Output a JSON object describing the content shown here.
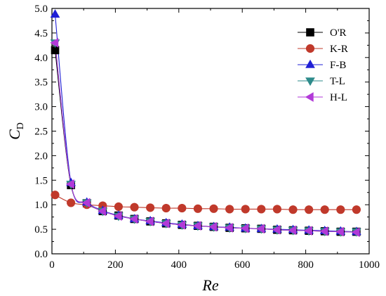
{
  "chart_data": {
    "type": "line",
    "title": "",
    "xlabel": "Re",
    "ylabel_main": "C",
    "ylabel_sub": "D",
    "xlim": [
      0,
      1000
    ],
    "ylim": [
      0,
      5.0
    ],
    "xticks": [
      0,
      200,
      400,
      600,
      800,
      1000
    ],
    "yticks": [
      0.0,
      0.5,
      1.0,
      1.5,
      2.0,
      2.5,
      3.0,
      3.5,
      4.0,
      4.5,
      5.0
    ],
    "ytick_labels": [
      "0.0",
      "0.5",
      "1.0",
      "1.5",
      "2.0",
      "2.5",
      "3.0",
      "3.5",
      "4.0",
      "4.5",
      "5.0"
    ],
    "xtick_labels": [
      "0",
      "200",
      "400",
      "600",
      "800",
      "1000"
    ],
    "grid": false,
    "legend_position": "top-right",
    "series": [
      {
        "name": "O'R",
        "marker": "square",
        "color": "#000000",
        "x": [
          10,
          60,
          110,
          160,
          210,
          260,
          310,
          360,
          410,
          460,
          510,
          560,
          610,
          660,
          710,
          760,
          810,
          860,
          910,
          960
        ],
        "y": [
          4.15,
          1.4,
          1.03,
          0.87,
          0.78,
          0.71,
          0.66,
          0.62,
          0.59,
          0.57,
          0.55,
          0.53,
          0.52,
          0.51,
          0.49,
          0.48,
          0.47,
          0.46,
          0.45,
          0.45
        ]
      },
      {
        "name": "K-R",
        "marker": "circle",
        "color": "#c0392b",
        "x": [
          10,
          60,
          110,
          160,
          210,
          260,
          310,
          360,
          410,
          460,
          510,
          560,
          610,
          660,
          710,
          760,
          810,
          860,
          910,
          960
        ],
        "y": [
          1.2,
          1.04,
          1.0,
          0.98,
          0.96,
          0.95,
          0.94,
          0.93,
          0.93,
          0.92,
          0.92,
          0.91,
          0.91,
          0.91,
          0.91,
          0.9,
          0.9,
          0.9,
          0.9,
          0.9
        ]
      },
      {
        "name": "F-B",
        "marker": "triangle-up",
        "color": "#1f1fd6",
        "x": [
          10,
          60,
          110,
          160,
          210,
          260,
          310,
          360,
          410,
          460,
          510,
          560,
          610,
          660,
          710,
          760,
          810,
          860,
          910,
          960
        ],
        "y": [
          4.88,
          1.45,
          1.05,
          0.88,
          0.78,
          0.71,
          0.67,
          0.63,
          0.6,
          0.57,
          0.55,
          0.54,
          0.52,
          0.51,
          0.5,
          0.49,
          0.48,
          0.47,
          0.46,
          0.45
        ]
      },
      {
        "name": "T-L",
        "marker": "triangle-down",
        "color": "#2e8b8b",
        "x": [
          10,
          60,
          110,
          160,
          210,
          260,
          310,
          360,
          410,
          460,
          510,
          560,
          610,
          660,
          710,
          760,
          810,
          860,
          910,
          960
        ],
        "y": [
          4.3,
          1.42,
          1.04,
          0.87,
          0.77,
          0.71,
          0.66,
          0.62,
          0.59,
          0.57,
          0.55,
          0.53,
          0.52,
          0.51,
          0.49,
          0.48,
          0.47,
          0.46,
          0.45,
          0.45
        ]
      },
      {
        "name": "H-L",
        "marker": "triangle-left",
        "color": "#b23ad8",
        "x": [
          10,
          60,
          110,
          160,
          210,
          260,
          310,
          360,
          410,
          460,
          510,
          560,
          610,
          660,
          710,
          760,
          810,
          860,
          910,
          960
        ],
        "y": [
          4.3,
          1.42,
          1.04,
          0.87,
          0.77,
          0.71,
          0.66,
          0.62,
          0.59,
          0.57,
          0.55,
          0.53,
          0.52,
          0.51,
          0.49,
          0.48,
          0.47,
          0.46,
          0.45,
          0.44
        ]
      }
    ]
  }
}
